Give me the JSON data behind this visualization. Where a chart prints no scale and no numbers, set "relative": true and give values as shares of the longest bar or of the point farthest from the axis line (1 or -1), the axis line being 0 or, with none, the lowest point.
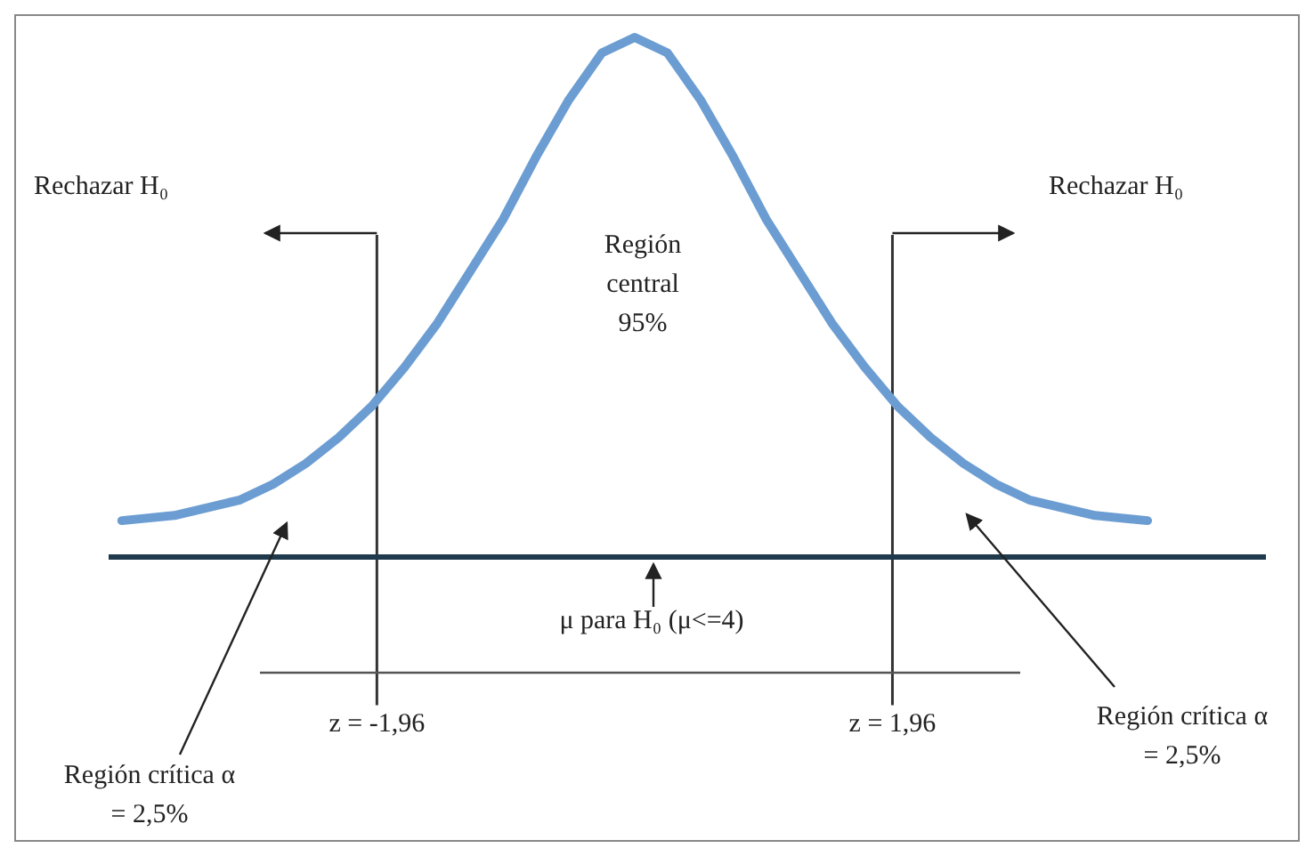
{
  "chart_data": {
    "type": "line",
    "relative": true,
    "x": [
      -3.9,
      -3.5,
      -3,
      -2.75,
      -2.5,
      -2.25,
      -2,
      -1.75,
      -1.5,
      -1.25,
      -1,
      -0.75,
      -0.5,
      -0.25,
      0,
      0.25,
      0.5,
      0.75,
      1,
      1.25,
      1.5,
      1.75,
      2,
      2.25,
      2.5,
      2.75,
      3,
      3.5,
      3.9
    ],
    "series": [
      {
        "color": "#6c9dd2",
        "values": [
          0.07,
          0.08,
          0.11,
          0.14,
          0.18,
          0.23,
          0.29,
          0.365,
          0.45,
          0.55,
          0.65,
          0.77,
          0.88,
          0.97,
          1,
          0.97,
          0.88,
          0.77,
          0.65,
          0.55,
          0.45,
          0.365,
          0.29,
          0.23,
          0.18,
          0.14,
          0.11,
          0.08,
          0.07
        ]
      }
    ],
    "xlim": [
      -4,
      4.8
    ],
    "xticks": [
      {
        "value": -1.96,
        "label": "z = -1,96"
      },
      {
        "value": 1.96,
        "label": "z = 1,96"
      }
    ],
    "tick_labels": "x",
    "marker": "none",
    "line_style": "solid",
    "ref_lines": [
      {
        "axis": "x",
        "value": -1.96,
        "color": "#333333"
      },
      {
        "axis": "x",
        "value": 1.96,
        "color": "#333333"
      }
    ],
    "annotations": [
      "Rechazar H₀",
      "Rechazar H₀",
      "Región central 95%",
      "μ para H₀ (μ<=4)",
      "Región crítica α = 2,5%",
      "Región crítica α = 2,5%"
    ]
  }
}
